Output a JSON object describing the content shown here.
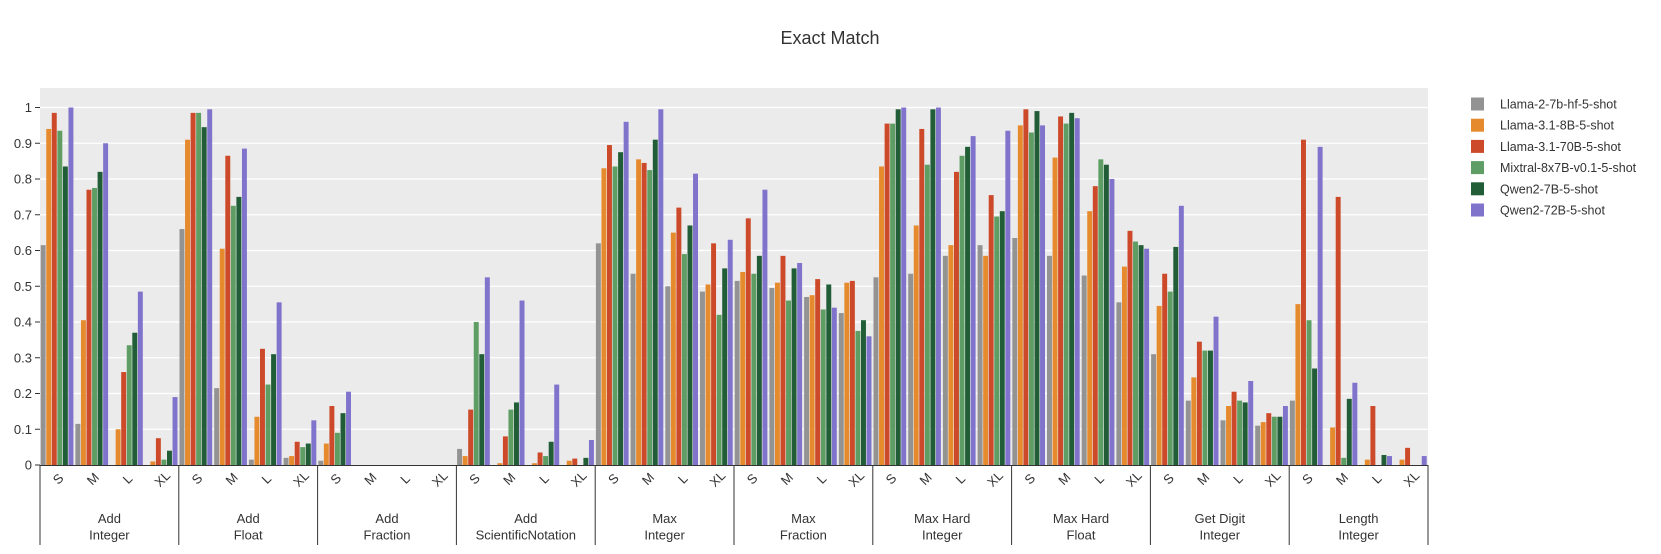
{
  "chart_data": {
    "type": "bar",
    "title": "Exact Match",
    "xlabel": "",
    "ylabel": "",
    "ylim": [
      0,
      1.02
    ],
    "yticks": [
      {
        "value": 0,
        "label": "0"
      },
      {
        "value": 0.1,
        "label": "0.1"
      },
      {
        "value": 0.2,
        "label": "0.2"
      },
      {
        "value": 0.3,
        "label": "0.3"
      },
      {
        "value": 0.4,
        "label": "0.4"
      },
      {
        "value": 0.5,
        "label": "0.5"
      },
      {
        "value": 0.6,
        "label": "0.6"
      },
      {
        "value": 0.7,
        "label": "0.7"
      },
      {
        "value": 0.8,
        "label": "0.8"
      },
      {
        "value": 0.9,
        "label": "0.9"
      },
      {
        "value": 1,
        "label": "1"
      }
    ],
    "grid": true,
    "legend_position": "right",
    "sizes": [
      "S",
      "M",
      "L",
      "XL"
    ],
    "groups": [
      {
        "name": "Add Integer",
        "lines": [
          "Add",
          "Integer"
        ]
      },
      {
        "name": "Add Float",
        "lines": [
          "Add",
          "Float"
        ]
      },
      {
        "name": "Add Fraction",
        "lines": [
          "Add",
          "Fraction"
        ]
      },
      {
        "name": "Add ScientificNotation",
        "lines": [
          "Add",
          "ScientificNotation"
        ]
      },
      {
        "name": "Max Integer",
        "lines": [
          "Max",
          "Integer"
        ]
      },
      {
        "name": "Max Fraction",
        "lines": [
          "Max",
          "Fraction"
        ]
      },
      {
        "name": "Max Hard Integer",
        "lines": [
          "Max Hard",
          "Integer"
        ]
      },
      {
        "name": "Max Hard Float",
        "lines": [
          "Max Hard",
          "Float"
        ]
      },
      {
        "name": "Get Digit Integer",
        "lines": [
          "Get Digit",
          "Integer"
        ]
      },
      {
        "name": "Length Integer",
        "lines": [
          "Length",
          "Integer"
        ]
      }
    ],
    "series": [
      {
        "name": "Llama-2-7b-hf-5-shot",
        "color": "#939393",
        "values": [
          0.615,
          0.115,
          0.0,
          0.0,
          0.66,
          0.215,
          0.015,
          0.02,
          0.012,
          0.0,
          0.0,
          0.0,
          0.045,
          0.0,
          0.0,
          0.0,
          0.62,
          0.535,
          0.5,
          0.485,
          0.515,
          0.495,
          0.47,
          0.425,
          0.525,
          0.535,
          0.585,
          0.615,
          0.635,
          0.585,
          0.53,
          0.455,
          0.31,
          0.18,
          0.125,
          0.11,
          0.18,
          0.0,
          0.0,
          0.0
        ]
      },
      {
        "name": "Llama-3.1-8B-5-shot",
        "color": "#e68a2e",
        "values": [
          0.94,
          0.405,
          0.1,
          0.01,
          0.91,
          0.605,
          0.135,
          0.025,
          0.06,
          0.0,
          0.0,
          0.0,
          0.025,
          0.005,
          0.005,
          0.012,
          0.83,
          0.855,
          0.65,
          0.505,
          0.54,
          0.51,
          0.475,
          0.51,
          0.835,
          0.67,
          0.615,
          0.585,
          0.95,
          0.86,
          0.71,
          0.555,
          0.445,
          0.245,
          0.165,
          0.12,
          0.45,
          0.105,
          0.015,
          0.015
        ]
      },
      {
        "name": "Llama-3.1-70B-5-shot",
        "color": "#cc4a2a",
        "values": [
          0.985,
          0.77,
          0.26,
          0.075,
          0.985,
          0.865,
          0.325,
          0.065,
          0.165,
          0.0,
          0.0,
          0.0,
          0.155,
          0.08,
          0.035,
          0.018,
          0.895,
          0.845,
          0.72,
          0.62,
          0.69,
          0.585,
          0.52,
          0.515,
          0.955,
          0.94,
          0.82,
          0.755,
          0.995,
          0.975,
          0.78,
          0.655,
          0.535,
          0.345,
          0.205,
          0.145,
          0.91,
          0.75,
          0.165,
          0.048
        ]
      },
      {
        "name": "Mixtral-8x7B-v0.1-5-shot",
        "color": "#5e9e64",
        "values": [
          0.935,
          0.775,
          0.335,
          0.015,
          0.985,
          0.725,
          0.225,
          0.05,
          0.09,
          0.0,
          0.0,
          0.0,
          0.4,
          0.155,
          0.025,
          0.0,
          0.835,
          0.825,
          0.59,
          0.42,
          0.535,
          0.46,
          0.435,
          0.375,
          0.955,
          0.84,
          0.865,
          0.695,
          0.93,
          0.955,
          0.855,
          0.625,
          0.485,
          0.32,
          0.18,
          0.135,
          0.405,
          0.02,
          0.0,
          0.0
        ]
      },
      {
        "name": "Qwen2-7B-5-shot",
        "color": "#215e37",
        "values": [
          0.835,
          0.82,
          0.37,
          0.04,
          0.945,
          0.75,
          0.31,
          0.06,
          0.145,
          0.0,
          0.0,
          0.0,
          0.31,
          0.175,
          0.065,
          0.02,
          0.875,
          0.91,
          0.67,
          0.55,
          0.585,
          0.55,
          0.505,
          0.405,
          0.995,
          0.995,
          0.89,
          0.71,
          0.99,
          0.985,
          0.84,
          0.615,
          0.61,
          0.32,
          0.175,
          0.135,
          0.27,
          0.185,
          0.028,
          0.0
        ]
      },
      {
        "name": "Qwen2-72B-5-shot",
        "color": "#8073cb",
        "values": [
          1.0,
          0.9,
          0.485,
          0.19,
          0.995,
          0.885,
          0.455,
          0.125,
          0.205,
          0.0,
          0.0,
          0.0,
          0.525,
          0.46,
          0.225,
          0.07,
          0.96,
          0.995,
          0.815,
          0.63,
          0.77,
          0.565,
          0.44,
          0.36,
          1.0,
          1.0,
          0.92,
          0.935,
          0.95,
          0.97,
          0.8,
          0.605,
          0.725,
          0.415,
          0.235,
          0.165,
          0.89,
          0.23,
          0.025,
          0.025
        ]
      }
    ]
  }
}
